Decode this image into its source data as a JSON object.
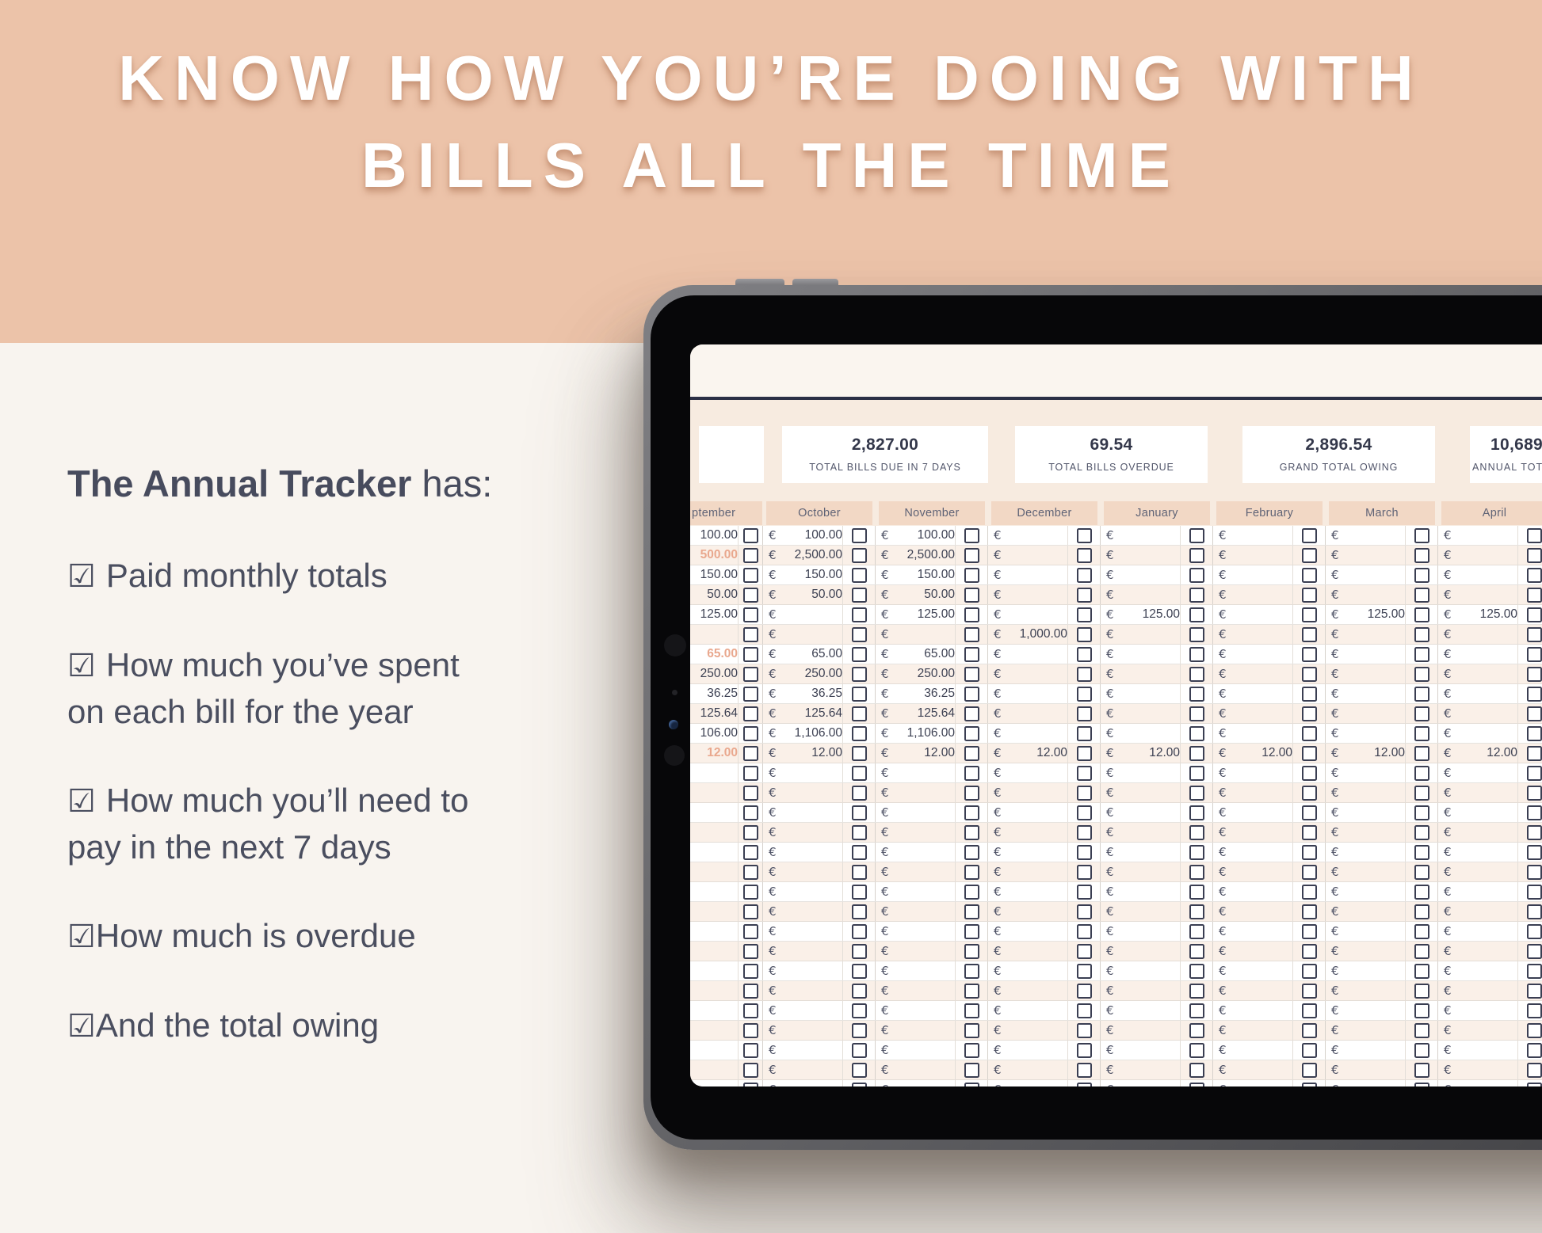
{
  "hero": {
    "line1": "KNOW HOW YOU’RE DOING WITH",
    "line2": "BILLS ALL THE TIME"
  },
  "checklist": {
    "tick": "☑",
    "title_bold": "The Annual Tracker",
    "title_rest": " has:",
    "items": [
      {
        "text": "Paid monthly totals",
        "space_after_tick": true
      },
      {
        "text": "How much you’ve spent\non each bill for the year",
        "space_after_tick": true
      },
      {
        "text": "How much you’ll need to\npay in the next 7 days",
        "space_after_tick": true
      },
      {
        "text": "How much is overdue",
        "space_after_tick": false
      },
      {
        "text": "And the total owing",
        "space_after_tick": false
      }
    ]
  },
  "tablet": {
    "stats": [
      {
        "value": "2,827.00",
        "label": "TOTAL BILLS DUE IN 7 DAYS"
      },
      {
        "value": "69.54",
        "label": "TOTAL BILLS OVERDUE"
      },
      {
        "value": "2,896.54",
        "label": "GRAND TOTAL OWING"
      },
      {
        "value": "10,689",
        "label": "ANNUAL TOTAL"
      }
    ],
    "sheet": {
      "currency": "€",
      "months": [
        "ptember",
        "October",
        "November",
        "December",
        "January",
        "February",
        "March",
        "April"
      ],
      "rows": [
        [
          "100.00",
          "100.00",
          "100.00",
          "",
          "",
          "",
          "",
          ""
        ],
        [
          "500.00",
          "2,500.00",
          "2,500.00",
          "",
          "",
          "",
          "",
          ""
        ],
        [
          "150.00",
          "150.00",
          "150.00",
          "",
          "",
          "",
          "",
          ""
        ],
        [
          "50.00",
          "50.00",
          "50.00",
          "",
          "",
          "",
          "",
          ""
        ],
        [
          "125.00",
          "",
          "125.00",
          "",
          "125.00",
          "",
          "125.00",
          "125.00"
        ],
        [
          "",
          "",
          "",
          "1,000.00",
          "",
          "",
          "",
          ""
        ],
        [
          "65.00",
          "65.00",
          "65.00",
          "",
          "",
          "",
          "",
          ""
        ],
        [
          "250.00",
          "250.00",
          "250.00",
          "",
          "",
          "",
          "",
          ""
        ],
        [
          "36.25",
          "36.25",
          "36.25",
          "",
          "",
          "",
          "",
          ""
        ],
        [
          "125.64",
          "125.64",
          "125.64",
          "",
          "",
          "",
          "",
          ""
        ],
        [
          "106.00",
          "1,106.00",
          "1,106.00",
          "",
          "",
          "",
          "",
          ""
        ],
        [
          "12.00",
          "12.00",
          "12.00",
          "12.00",
          "12.00",
          "12.00",
          "12.00",
          "12.00"
        ]
      ],
      "highlighted_september_rows": [
        1,
        6,
        11
      ],
      "empty_row_count": 18
    }
  },
  "colors": {
    "hero_bg": "#ecc3a9",
    "page_bg": "#f8f4ef",
    "text_dark": "#474b5d",
    "navy_line": "#2b2f45",
    "month_header_bg": "#f2d8c5",
    "row_alt_bg": "#faf0e8",
    "highlight_value": "#e9a88e",
    "screen_bg": "#f7ebe0",
    "stat_box_bg": "#ffffff"
  }
}
